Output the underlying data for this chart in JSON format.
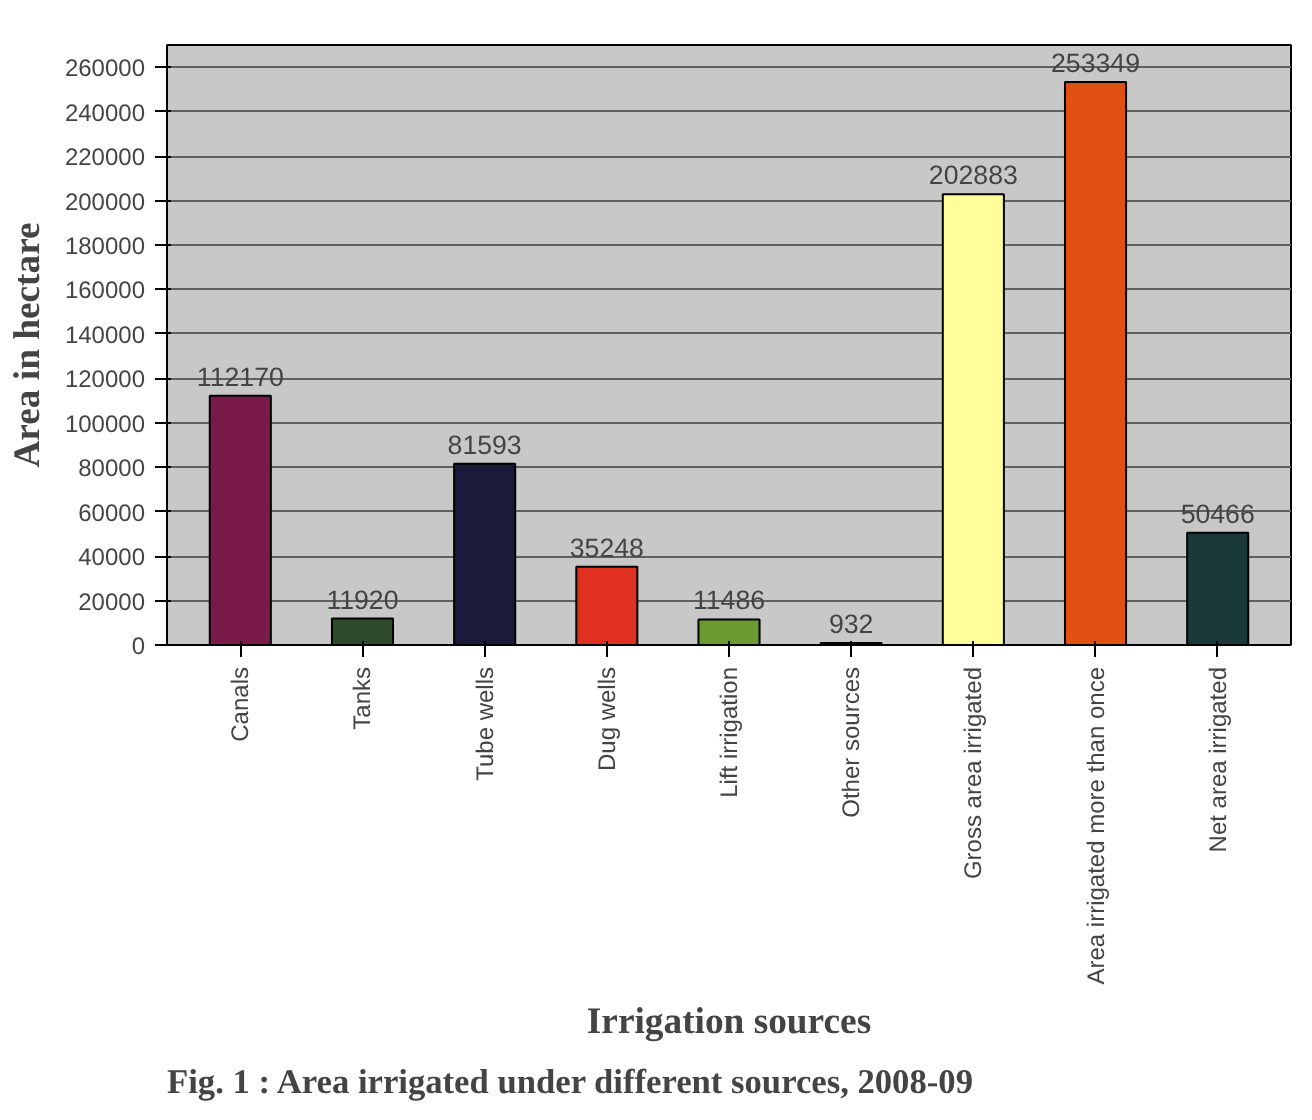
{
  "chart_data": {
    "type": "bar",
    "title": "Fig. 1 :   Area irrigated under different sources, 2008-09",
    "xlabel": "Irrigation sources",
    "ylabel": "Area in hectare",
    "categories": [
      "Canals",
      "Tanks",
      "Tube wells",
      "Dug wells",
      "Lift irrigation",
      "Other sources",
      "Gross area irrigated",
      "Area irrigated more than once",
      "Net area irrigated"
    ],
    "values": [
      112170,
      11920,
      81593,
      35248,
      11486,
      932,
      202883,
      253349,
      50466
    ],
    "colors": [
      "#7a1a4a",
      "#2d4a2a",
      "#1a1a3a",
      "#e03020",
      "#6a9a30",
      "#2a4a2a",
      "#ffff99",
      "#e05010",
      "#1a3a3a"
    ],
    "ylim": [
      0,
      270000
    ],
    "yticks": [
      0,
      20000,
      40000,
      60000,
      80000,
      100000,
      120000,
      140000,
      160000,
      180000,
      200000,
      220000,
      240000,
      260000
    ],
    "grid": "y",
    "data_labels": true
  }
}
